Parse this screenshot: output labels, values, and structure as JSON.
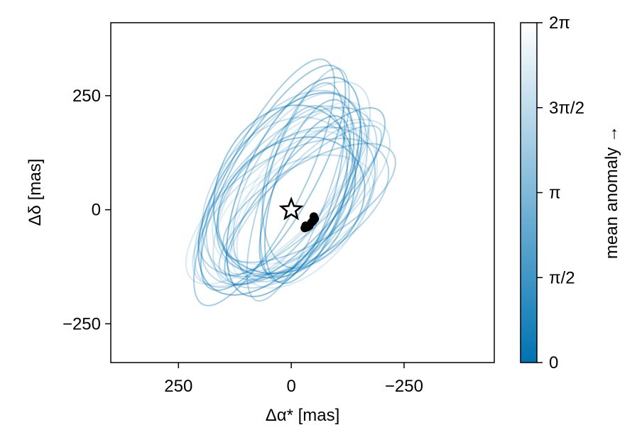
{
  "chart_data": {
    "type": "line",
    "xlabel": "Δα* [mas]",
    "ylabel": "Δδ [mas]",
    "xlim": [
      400,
      -450
    ],
    "ylim": [
      -335,
      410
    ],
    "x_reversed": true,
    "x_ticks": [
      {
        "value": 250,
        "label": "250"
      },
      {
        "value": 0,
        "label": "0"
      },
      {
        "value": -250,
        "label": "−250"
      }
    ],
    "y_ticks": [
      {
        "value": 250,
        "label": "250"
      },
      {
        "value": 0,
        "label": "0"
      },
      {
        "value": -250,
        "label": "−250"
      }
    ],
    "grid": false,
    "legend": "none",
    "colorbar": {
      "label": "mean anomaly →",
      "range": [
        0,
        6.2832
      ],
      "colors": [
        "#0072b2",
        "#ffffff"
      ],
      "ticks": [
        {
          "value": 0,
          "label": "0"
        },
        {
          "value": 1.5708,
          "label": "π/2"
        },
        {
          "value": 3.1416,
          "label": "π"
        },
        {
          "value": 4.7124,
          "label": "3π/2"
        },
        {
          "value": 6.2832,
          "label": "2π"
        }
      ]
    },
    "orbit_color": "#0072b2",
    "orbits": [
      {
        "a": 230,
        "b": 95,
        "rot": 55,
        "cx": 20,
        "cy": 40
      },
      {
        "a": 210,
        "b": 110,
        "rot": 62,
        "cx": 10,
        "cy": 35
      },
      {
        "a": 250,
        "b": 80,
        "rot": 48,
        "cx": 30,
        "cy": 30
      },
      {
        "a": 190,
        "b": 120,
        "rot": 40,
        "cx": -10,
        "cy": 20
      },
      {
        "a": 270,
        "b": 70,
        "rot": 70,
        "cx": 15,
        "cy": 55
      },
      {
        "a": 175,
        "b": 135,
        "rot": 35,
        "cx": 0,
        "cy": 10
      },
      {
        "a": 240,
        "b": 100,
        "rot": 58,
        "cx": -20,
        "cy": 45
      },
      {
        "a": 215,
        "b": 85,
        "rot": 30,
        "cx": 40,
        "cy": 15
      },
      {
        "a": 260,
        "b": 110,
        "rot": 65,
        "cx": 5,
        "cy": 50
      },
      {
        "a": 200,
        "b": 140,
        "rot": 50,
        "cx": -30,
        "cy": 25
      },
      {
        "a": 225,
        "b": 75,
        "rot": 75,
        "cx": 25,
        "cy": 60
      },
      {
        "a": 185,
        "b": 100,
        "rot": 25,
        "cx": 10,
        "cy": 0
      },
      {
        "a": 245,
        "b": 125,
        "rot": 45,
        "cx": -5,
        "cy": 30
      },
      {
        "a": 280,
        "b": 90,
        "rot": 60,
        "cx": -40,
        "cy": 70
      },
      {
        "a": 205,
        "b": 115,
        "rot": 52,
        "cx": 35,
        "cy": 5
      },
      {
        "a": 235,
        "b": 65,
        "rot": 42,
        "cx": 20,
        "cy": 20
      },
      {
        "a": 195,
        "b": 150,
        "rot": 68,
        "cx": -15,
        "cy": 40
      },
      {
        "a": 265,
        "b": 105,
        "rot": 38,
        "cx": 0,
        "cy": 15
      },
      {
        "a": 180,
        "b": 90,
        "rot": 80,
        "cx": 30,
        "cy": 50
      },
      {
        "a": 255,
        "b": 130,
        "rot": 55,
        "cx": -25,
        "cy": 35
      },
      {
        "a": 220,
        "b": 60,
        "rot": 47,
        "cx": 15,
        "cy": 25
      },
      {
        "a": 300,
        "b": 85,
        "rot": 63,
        "cx": -60,
        "cy": 60
      },
      {
        "a": 170,
        "b": 110,
        "rot": 33,
        "cx": 20,
        "cy": -10
      },
      {
        "a": 240,
        "b": 145,
        "rot": 57,
        "cx": -10,
        "cy": 45
      },
      {
        "a": 210,
        "b": 78,
        "rot": 72,
        "cx": 40,
        "cy": 40
      },
      {
        "a": 260,
        "b": 95,
        "rot": 44,
        "cx": -35,
        "cy": 30
      },
      {
        "a": 230,
        "b": 120,
        "rot": 28,
        "cx": 5,
        "cy": 5
      },
      {
        "a": 190,
        "b": 70,
        "rot": 66,
        "cx": 30,
        "cy": 30
      },
      {
        "a": 275,
        "b": 115,
        "rot": 51,
        "cx": -20,
        "cy": 55
      },
      {
        "a": 200,
        "b": 130,
        "rot": 39,
        "cx": 10,
        "cy": 20
      }
    ],
    "observations": [
      {
        "x": -50,
        "y": -15
      },
      {
        "x": -52,
        "y": -20
      },
      {
        "x": -48,
        "y": -25
      },
      {
        "x": -45,
        "y": -28
      },
      {
        "x": -40,
        "y": -35
      },
      {
        "x": -36,
        "y": -38
      },
      {
        "x": -32,
        "y": -35
      },
      {
        "x": -30,
        "y": -40
      }
    ],
    "star": {
      "x": 0,
      "y": 0
    }
  }
}
